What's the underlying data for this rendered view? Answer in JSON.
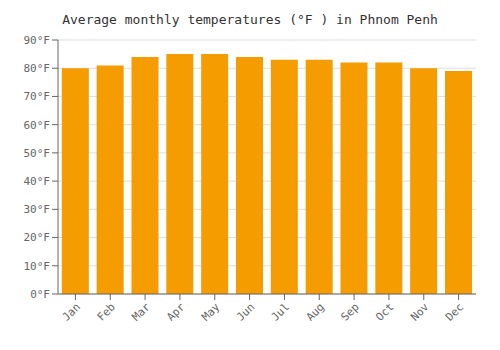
{
  "chart_data": {
    "type": "bar",
    "title": "Average monthly temperatures (°F ) in Phnom Penh",
    "categories": [
      "Jan",
      "Feb",
      "Mar",
      "Apr",
      "May",
      "Jun",
      "Jul",
      "Aug",
      "Sep",
      "Oct",
      "Nov",
      "Dec"
    ],
    "values": [
      80,
      81,
      84,
      85,
      85,
      84,
      83,
      83,
      82,
      82,
      80,
      79
    ],
    "color": "#F59C00",
    "ylim": [
      0,
      90
    ],
    "yticks": [
      {
        "value": 0,
        "label": "0°F"
      },
      {
        "value": 10,
        "label": "10°F"
      },
      {
        "value": 20,
        "label": "20°F"
      },
      {
        "value": 30,
        "label": "30°F"
      },
      {
        "value": 40,
        "label": "40°F"
      },
      {
        "value": 50,
        "label": "50°F"
      },
      {
        "value": 60,
        "label": "60°F"
      },
      {
        "value": 70,
        "label": "70°F"
      },
      {
        "value": 80,
        "label": "80°F"
      },
      {
        "value": 90,
        "label": "90°F"
      }
    ],
    "grid": true
  }
}
